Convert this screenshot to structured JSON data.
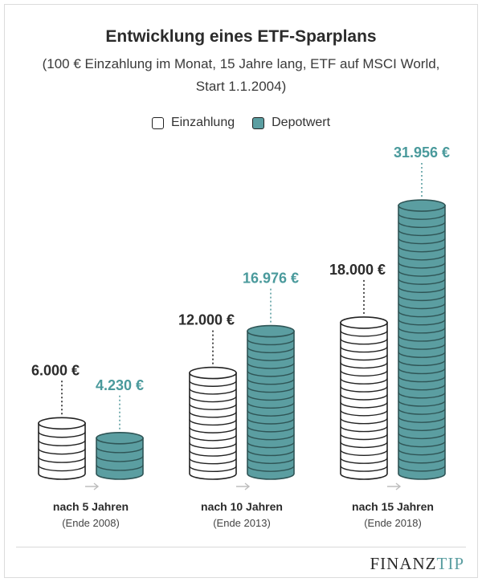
{
  "header": {
    "title": "Entwicklung eines ETF-Sparplans",
    "subtitle": "(100 € Einzahlung im Monat, 15 Jahre lang, ETF auf MSCI World, Start 1.1.2004)"
  },
  "legend": {
    "einzahlung": "Einzahlung",
    "depotwert": "Depotwert"
  },
  "colors": {
    "teal": "#5b9ea1",
    "teal_dark": "#2f5556",
    "teal_label": "#4a9a9c",
    "outline": "#222222",
    "text": "#2b2b2b"
  },
  "chart_data": {
    "type": "bar",
    "categories": [
      "nach 5 Jahren",
      "nach 10 Jahren",
      "nach 15 Jahren"
    ],
    "category_sublabels": [
      "(Ende 2008)",
      "(Ende 2013)",
      "(Ende 2018)"
    ],
    "series": [
      {
        "name": "Einzahlung",
        "values": [
          6000,
          12000,
          18000
        ],
        "labels": [
          "6.000 €",
          "12.000 €",
          "18.000 €"
        ]
      },
      {
        "name": "Depotwert",
        "values": [
          4230,
          16976,
          31956
        ],
        "labels": [
          "4.230 €",
          "16.976 €",
          "31.956 €"
        ]
      }
    ],
    "unit": "€"
  },
  "brand": {
    "part1": "FINANZ",
    "part2": "TIP"
  }
}
